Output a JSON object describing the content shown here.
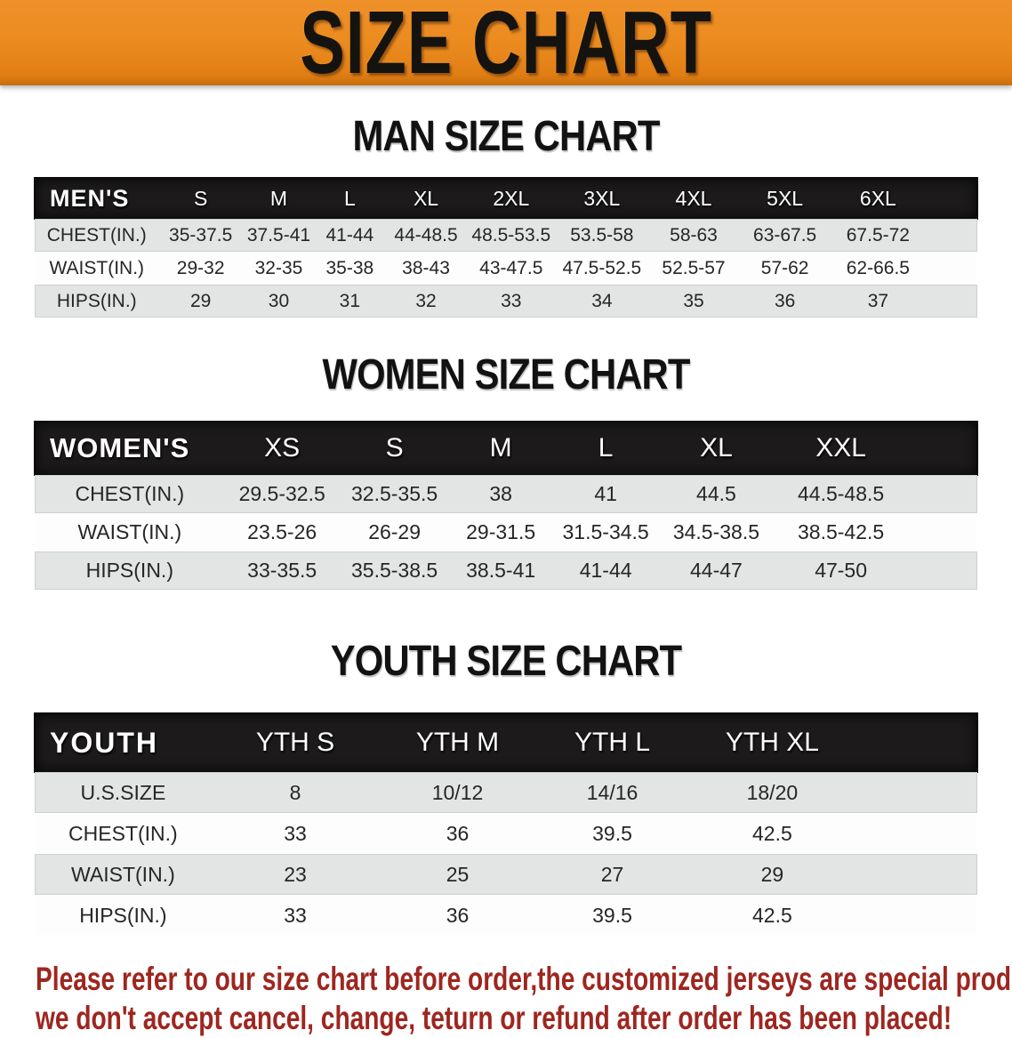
{
  "banner": {
    "title": "SIZE CHART"
  },
  "sections": [
    {
      "kind": "men",
      "heading": "MAN SIZE CHART",
      "header_label": "MEN'S",
      "columns": [
        "S",
        "M",
        "L",
        "XL",
        "2XL",
        "3XL",
        "4XL",
        "5XL",
        "6XL"
      ],
      "rows": [
        {
          "label": "CHEST(IN.)",
          "values": [
            "35-37.5",
            "37.5-41",
            "41-44",
            "44-48.5",
            "48.5-53.5",
            "53.5-58",
            "58-63",
            "63-67.5",
            "67.5-72"
          ]
        },
        {
          "label": "WAIST(IN.)",
          "values": [
            "29-32",
            "32-35",
            "35-38",
            "38-43",
            "43-47.5",
            "47.5-52.5",
            "52.5-57",
            "57-62",
            "62-66.5"
          ]
        },
        {
          "label": "HIPS(IN.)",
          "values": [
            "29",
            "30",
            "31",
            "32",
            "33",
            "34",
            "35",
            "36",
            "37"
          ]
        }
      ]
    },
    {
      "kind": "women",
      "heading": "WOMEN SIZE CHART",
      "header_label": "WOMEN'S",
      "columns": [
        "XS",
        "S",
        "M",
        "L",
        "XL",
        "XXL"
      ],
      "rows": [
        {
          "label": "CHEST(IN.)",
          "values": [
            "29.5-32.5",
            "32.5-35.5",
            "38",
            "41",
            "44.5",
            "44.5-48.5"
          ]
        },
        {
          "label": "WAIST(IN.)",
          "values": [
            "23.5-26",
            "26-29",
            "29-31.5",
            "31.5-34.5",
            "34.5-38.5",
            "38.5-42.5"
          ]
        },
        {
          "label": "HIPS(IN.)",
          "values": [
            "33-35.5",
            "35.5-38.5",
            "38.5-41",
            "41-44",
            "44-47",
            "47-50"
          ]
        }
      ]
    },
    {
      "kind": "youth",
      "heading": "YOUTH SIZE CHART",
      "header_label": "YOUTH",
      "columns": [
        "YTH S",
        "YTH M",
        "YTH L",
        "YTH XL"
      ],
      "rows": [
        {
          "label": "U.S.SIZE",
          "values": [
            "8",
            "10/12",
            "14/16",
            "18/20"
          ]
        },
        {
          "label": "CHEST(IN.)",
          "values": [
            "33",
            "36",
            "39.5",
            "42.5"
          ]
        },
        {
          "label": "WAIST(IN.)",
          "values": [
            "23",
            "25",
            "27",
            "29"
          ]
        },
        {
          "label": "HIPS(IN.)",
          "values": [
            "33",
            "36",
            "39.5",
            "42.5"
          ]
        }
      ]
    }
  ],
  "footer": {
    "line1": "Please refer to our size chart before order,the customized jerseys are special products,",
    "line2": "we don't accept cancel, change, teturn or refund after order has been placed!"
  },
  "colors": {
    "banner_orange": "#ED8A1F",
    "header_black": "#1c1a1a",
    "row_gray": "#e3e4e4",
    "row_white": "#fdfdfd",
    "notice_red": "#9e2620"
  }
}
